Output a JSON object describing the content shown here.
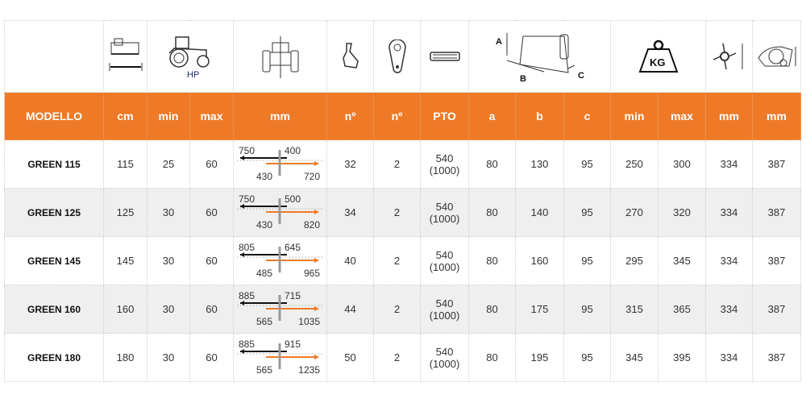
{
  "header_icons": [
    "mower-width-icon",
    "tractor-hp-icon",
    "tractor-offset-icon",
    "hammer-blade-icon",
    "rotor-link-icon",
    "pto-shaft-icon",
    "dimensions-icon",
    "weight-kg-icon",
    "rotor-diameter-icon",
    "housing-diameter-icon"
  ],
  "icon_labels": {
    "hp": "HP",
    "a": "A",
    "b": "B",
    "c": "C",
    "kg": "KG"
  },
  "columns": [
    "MODELLO",
    "cm",
    "min",
    "max",
    "mm",
    "nº",
    "nº",
    "PTO",
    "a",
    "b",
    "c",
    "min",
    "max",
    "mm",
    "mm"
  ],
  "colors": {
    "accent": "#ee7a27",
    "alt_row": "#efefef",
    "arrow_left": "#111111",
    "arrow_right": "#ee7a27"
  },
  "rows": [
    {
      "model": "GREEN 115",
      "cm": "115",
      "hp_min": "25",
      "hp_max": "60",
      "offset": {
        "tl": "750",
        "tr": "400",
        "bl": "430",
        "br": "720"
      },
      "blades": "32",
      "links": "2",
      "pto": "540",
      "pto2": "(1000)",
      "a": "80",
      "b": "130",
      "c": "95",
      "kg_min": "250",
      "kg_max": "300",
      "rotor": "334",
      "housing": "387"
    },
    {
      "model": "GREEN 125",
      "cm": "125",
      "hp_min": "30",
      "hp_max": "60",
      "offset": {
        "tl": "750",
        "tr": "500",
        "bl": "430",
        "br": "820"
      },
      "blades": "34",
      "links": "2",
      "pto": "540",
      "pto2": "(1000)",
      "a": "80",
      "b": "140",
      "c": "95",
      "kg_min": "270",
      "kg_max": "320",
      "rotor": "334",
      "housing": "387"
    },
    {
      "model": "GREEN 145",
      "cm": "145",
      "hp_min": "30",
      "hp_max": "60",
      "offset": {
        "tl": "805",
        "tr": "645",
        "bl": "485",
        "br": "965"
      },
      "blades": "40",
      "links": "2",
      "pto": "540",
      "pto2": "(1000)",
      "a": "80",
      "b": "160",
      "c": "95",
      "kg_min": "295",
      "kg_max": "345",
      "rotor": "334",
      "housing": "387"
    },
    {
      "model": "GREEN 160",
      "cm": "160",
      "hp_min": "30",
      "hp_max": "60",
      "offset": {
        "tl": "885",
        "tr": "715",
        "bl": "565",
        "br": "1035"
      },
      "blades": "44",
      "links": "2",
      "pto": "540",
      "pto2": "(1000)",
      "a": "80",
      "b": "175",
      "c": "95",
      "kg_min": "315",
      "kg_max": "365",
      "rotor": "334",
      "housing": "387"
    },
    {
      "model": "GREEN 180",
      "cm": "180",
      "hp_min": "30",
      "hp_max": "60",
      "offset": {
        "tl": "885",
        "tr": "915",
        "bl": "565",
        "br": "1235"
      },
      "blades": "50",
      "links": "2",
      "pto": "540",
      "pto2": "(1000)",
      "a": "80",
      "b": "195",
      "c": "95",
      "kg_min": "345",
      "kg_max": "395",
      "rotor": "334",
      "housing": "387"
    }
  ]
}
